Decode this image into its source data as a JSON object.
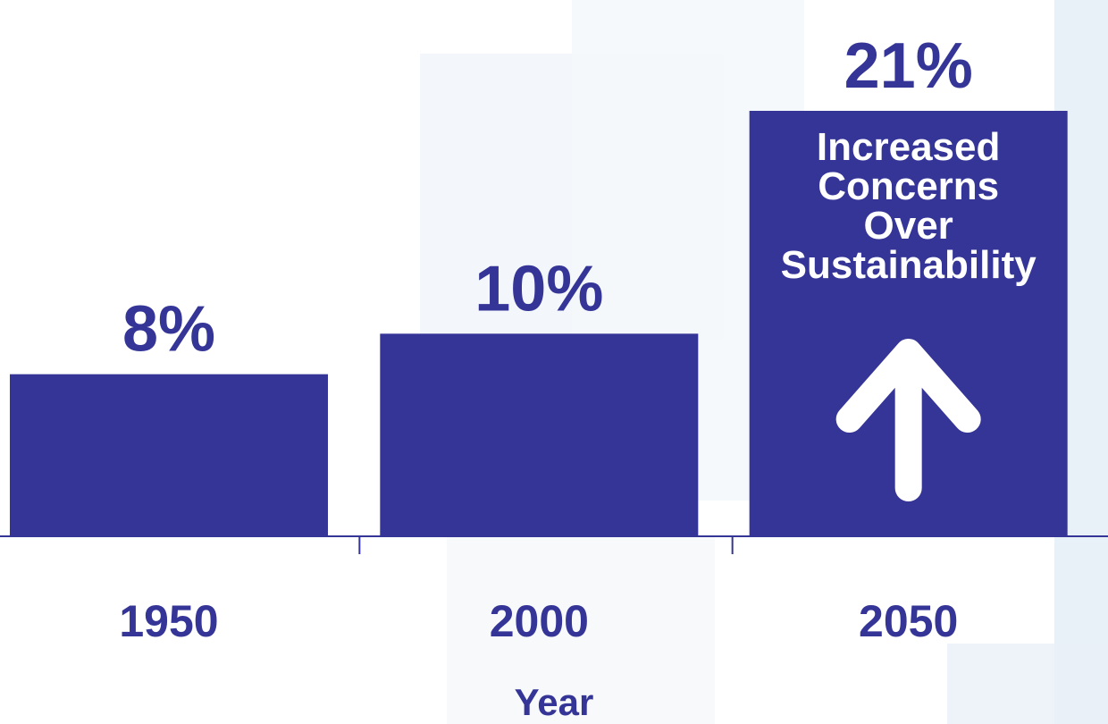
{
  "chart_data": {
    "type": "bar",
    "categories": [
      "1950",
      "2000",
      "2050"
    ],
    "values": [
      8,
      10,
      21
    ],
    "value_labels": [
      "8%",
      "10%",
      "21%"
    ],
    "title": "",
    "xlabel": "Year",
    "ylabel": "",
    "ylim": [
      0,
      21
    ],
    "grid": false,
    "annotation": {
      "category": "2050",
      "lines": [
        "Increased",
        "Concerns",
        "Over",
        "Sustainability"
      ],
      "arrow": "up"
    }
  },
  "colors": {
    "bar": "#343597",
    "text": "#343597",
    "annotation_text": "#ffffff",
    "axis": "#343597",
    "background_tint": "#eaf0f8"
  }
}
